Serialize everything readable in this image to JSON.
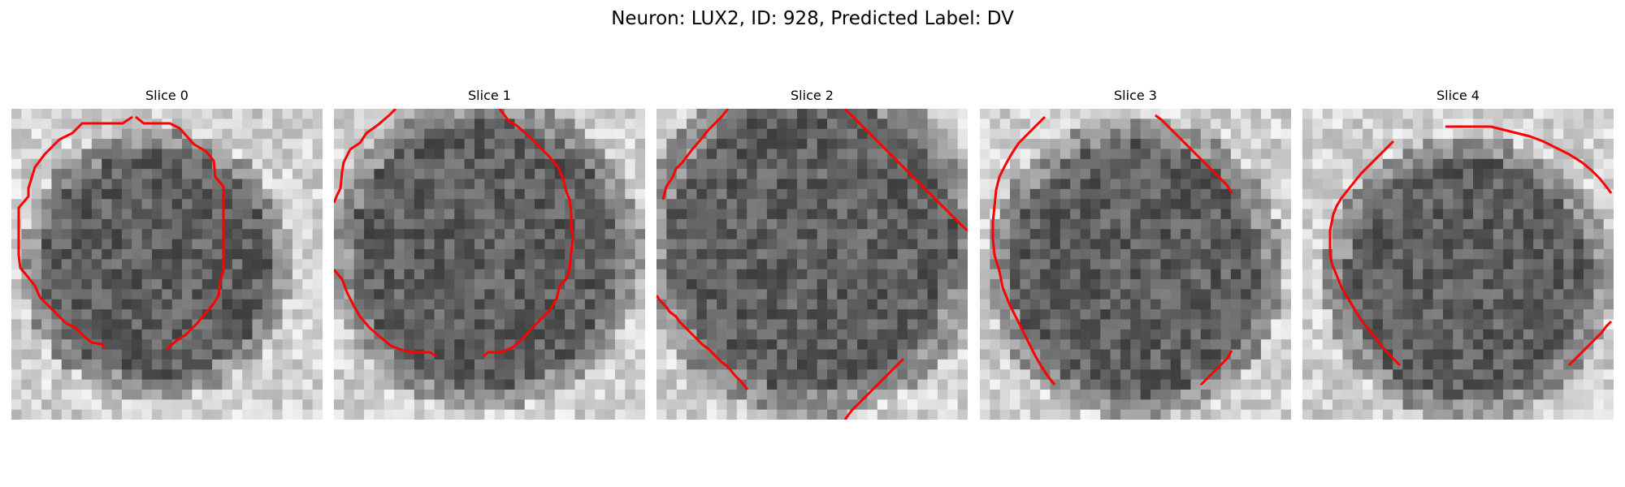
{
  "title": "Neuron: LUX2, ID: 928, Predicted Label: DV",
  "contour_color": "#ff0000",
  "slices": [
    {
      "label": "Slice 0"
    },
    {
      "label": "Slice 1"
    },
    {
      "label": "Slice 2"
    },
    {
      "label": "Slice 3"
    },
    {
      "label": "Slice 4"
    }
  ]
}
